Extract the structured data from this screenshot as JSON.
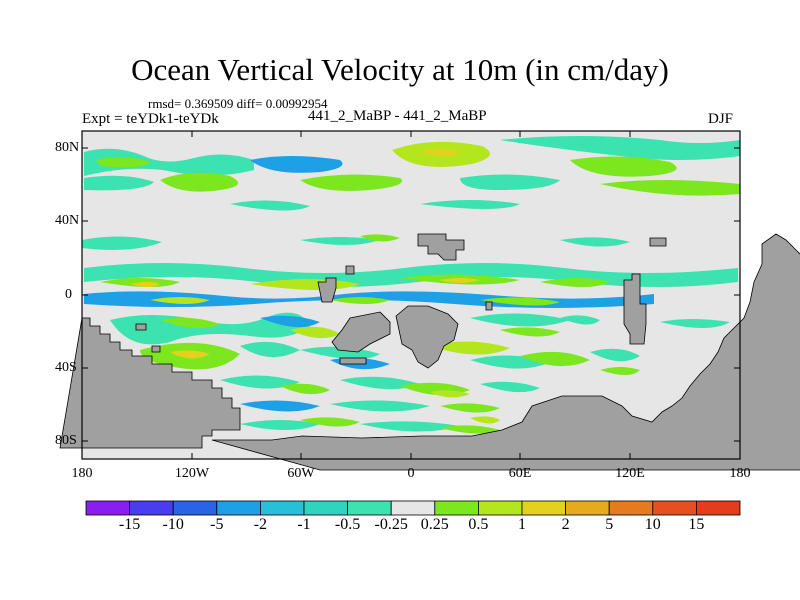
{
  "figure": {
    "title": "Ocean Vertical Velocity at 10m (in cm/day)",
    "stats": "rmsd= 0.369509 diff= 0.00992954",
    "expt": "Expt = teYDk1-teYDk",
    "center_label": "441_2_MaBP - 441_2_MaBP",
    "season": "DJF"
  },
  "axes": {
    "y_ticks": [
      "80N",
      "40N",
      "0",
      "40S",
      "80S"
    ],
    "x_ticks": [
      "180",
      "120W",
      "60W",
      "0",
      "60E",
      "120E",
      "180"
    ]
  },
  "colorbar": {
    "labels": [
      "-15",
      "-10",
      "-5",
      "-2",
      "-1",
      "-0.5",
      "-0.25",
      "0.25",
      "0.5",
      "1",
      "2",
      "5",
      "10",
      "15"
    ],
    "colors": [
      "#8a1ef0",
      "#4a3cf0",
      "#2a64e6",
      "#1ea0e6",
      "#28c0d8",
      "#30d2c0",
      "#3ce2b0",
      "#e6e6e6",
      "#7ce61e",
      "#b4e61e",
      "#e2d21e",
      "#e6aa1e",
      "#e67a1e",
      "#e6501e",
      "#e63c1e"
    ]
  },
  "map": {
    "land_color": "#a0a0a0",
    "ocean_color": "#e6e6e6",
    "palette": {
      "cyan": "#3ce2b0",
      "teal": "#30d2c0",
      "blue": "#1ea0e6",
      "green": "#7ce61e",
      "lime": "#b4e61e",
      "yellow": "#e2d21e"
    }
  }
}
